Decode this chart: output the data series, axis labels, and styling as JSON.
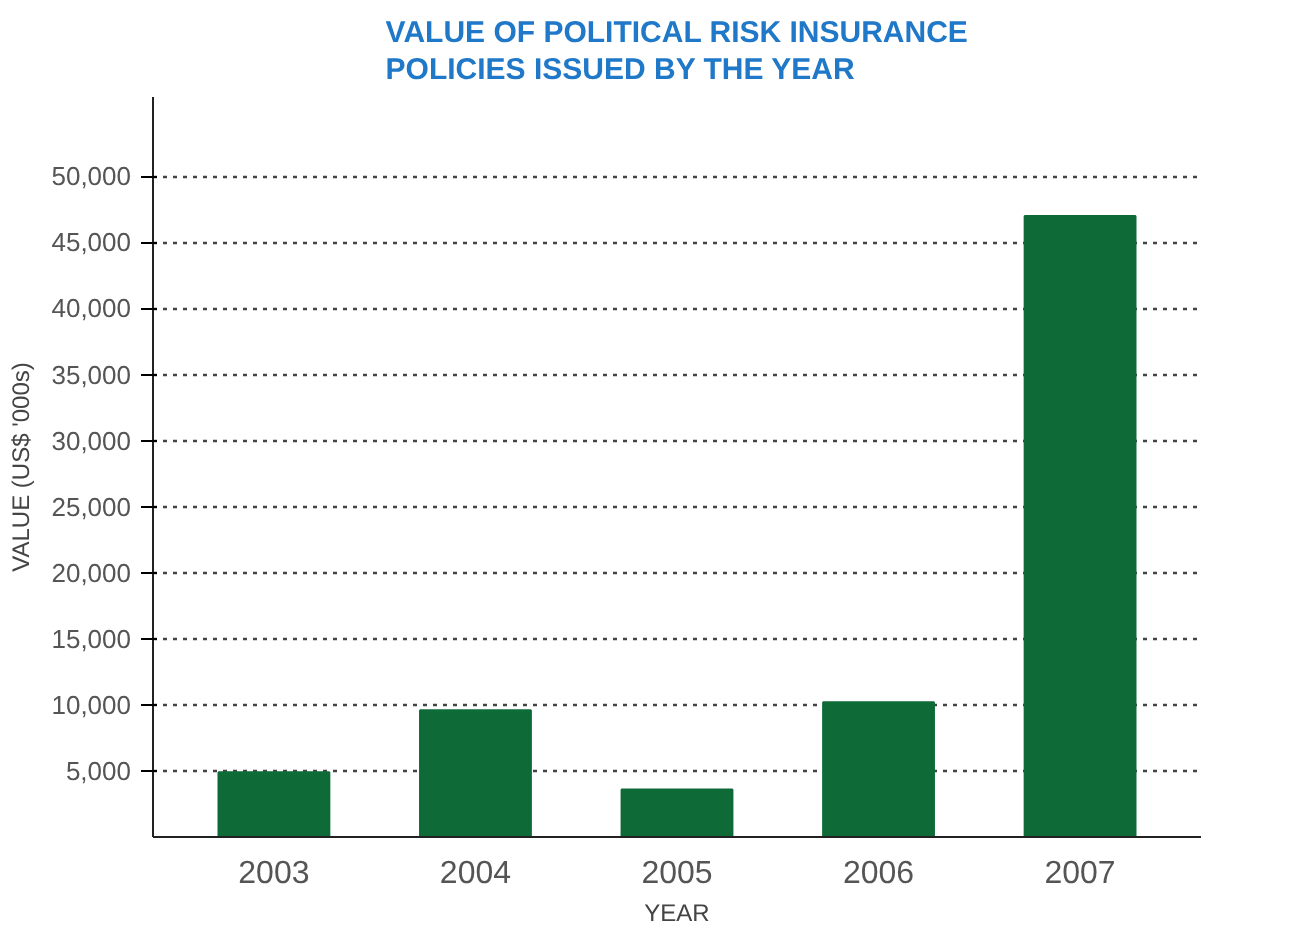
{
  "chart_data": {
    "type": "bar",
    "title": "VALUE OF POLITICAL RISK INSURANCE\nPOLICIES ISSUED BY THE YEAR",
    "xlabel": "YEAR",
    "ylabel": "VALUE (US$ '000s)",
    "categories": [
      "2003",
      "2004",
      "2005",
      "2006",
      "2007"
    ],
    "values": [
      4900,
      9600,
      3600,
      10200,
      47000
    ],
    "color": "#0e6b38",
    "ylim": [
      0,
      56000
    ],
    "yticks": [
      {
        "value": 5000,
        "label": "5,000"
      },
      {
        "value": 10000,
        "label": "10,000"
      },
      {
        "value": 15000,
        "label": "15,000"
      },
      {
        "value": 20000,
        "label": "20,000"
      },
      {
        "value": 25000,
        "label": "25,000"
      },
      {
        "value": 30000,
        "label": "30,000"
      },
      {
        "value": 35000,
        "label": "35,000"
      },
      {
        "value": 40000,
        "label": "40,000"
      },
      {
        "value": 45000,
        "label": "45,000"
      },
      {
        "value": 50000,
        "label": "50,000"
      }
    ],
    "grid": "y"
  }
}
